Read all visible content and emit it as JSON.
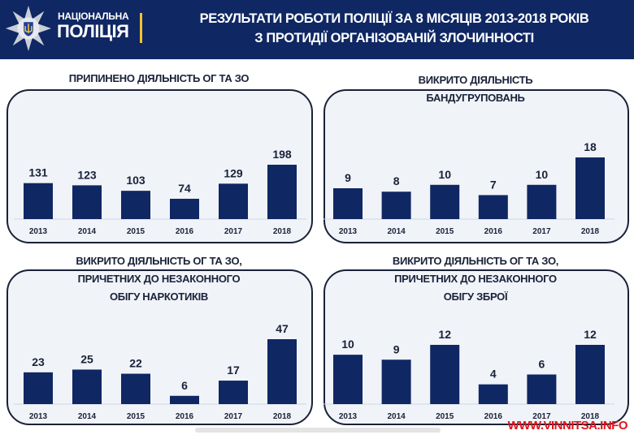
{
  "header": {
    "brand_line1": "НАЦІОНАЛЬНА",
    "brand_line2": "ПОЛІЦІЯ",
    "title_line1": "РЕЗУЛЬТАТИ РОБОТИ ПОЛІЦІЇ ЗА 8 МІСЯЦІВ 2013-2018 РОКІВ",
    "title_line2": "З ПРОТИДІЇ ОРГАНІЗОВАНІЙ ЗЛОЧИННОСТІ"
  },
  "colors": {
    "header": "#0f2763",
    "bar": "#0f2763",
    "panel": "#f0f3f8",
    "watermark": "#e0141b",
    "brand_accent": "#f2c233"
  },
  "watermark": "WWW.VINNITSA.INFO",
  "chart_data": [
    {
      "type": "bar",
      "title": "ПРИПИНЕНО ДІЯЛЬНІСТЬ ОГ ТА ЗО",
      "title_lines": [
        "ПРИПИНЕНО ДІЯЛЬНІСТЬ ОГ ТА ЗО"
      ],
      "categories": [
        "2013",
        "2014",
        "2015",
        "2016",
        "2017",
        "2018"
      ],
      "values": [
        131,
        123,
        103,
        74,
        129,
        198
      ],
      "data_labels": true,
      "grid": false
    },
    {
      "type": "bar",
      "title": "ВИКРИТО ДІЯЛЬНІСТЬ БАНДУГРУПОВАНЬ",
      "title_lines": [
        "ВИКРИТО ДІЯЛЬНІСТЬ",
        "БАНДУГРУПОВАНЬ"
      ],
      "categories": [
        "2013",
        "2014",
        "2015",
        "2016",
        "2017",
        "2018"
      ],
      "values": [
        9,
        8,
        10,
        7,
        10,
        18
      ],
      "data_labels": true,
      "grid": false
    },
    {
      "type": "bar",
      "title": "ВИКРИТО ДІЯЛЬНІСТЬ ОГ ТА ЗО, ПРИЧЕТНИХ ДО НЕЗАКОННОГО ОБІГУ НАРКОТИКІВ",
      "title_lines": [
        "ВИКРИТО ДІЯЛЬНІСТЬ ОГ ТА ЗО,",
        "ПРИЧЕТНИХ ДО НЕЗАКОННОГО",
        "ОБІГУ НАРКОТИКІВ"
      ],
      "categories": [
        "2013",
        "2014",
        "2015",
        "2016",
        "2017",
        "2018"
      ],
      "values": [
        23,
        25,
        22,
        6,
        17,
        47
      ],
      "data_labels": true,
      "grid": false
    },
    {
      "type": "bar",
      "title": "ВИКРИТО ДІЯЛЬНІСТЬ ОГ ТА ЗО, ПРИЧЕТНИХ ДО НЕЗАКОННОГО ОБІГУ ЗБРОЇ",
      "title_lines": [
        "ВИКРИТО ДІЯЛЬНІСТЬ ОГ ТА ЗО,",
        "ПРИЧЕТНИХ ДО НЕЗАКОННОГО",
        "ОБІГУ ЗБРОЇ"
      ],
      "categories": [
        "2013",
        "2014",
        "2015",
        "2016",
        "2017",
        "2018"
      ],
      "values": [
        10,
        9,
        12,
        4,
        6,
        12
      ],
      "data_labels": true,
      "grid": false
    }
  ]
}
